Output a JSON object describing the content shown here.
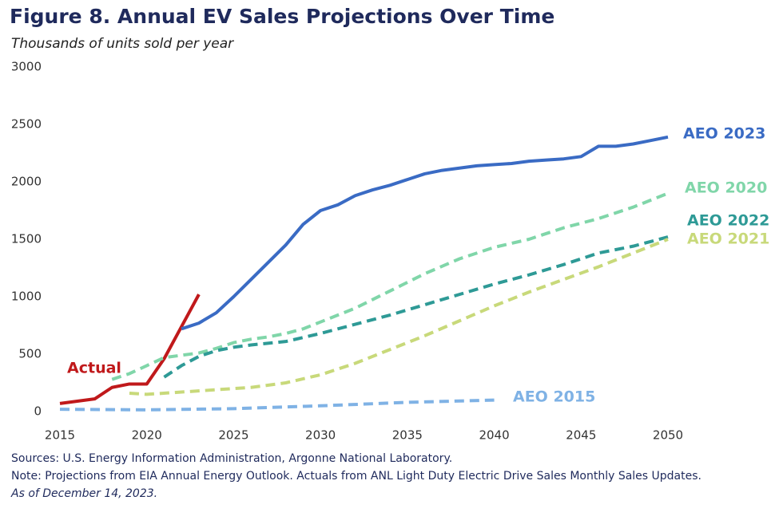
{
  "chart_data": {
    "type": "line",
    "title": "Figure 8. Annual EV Sales Projections Over Time",
    "subtitle": "Thousands of units sold per year",
    "xlim": [
      2015,
      2050
    ],
    "xticks": [
      2015,
      2020,
      2025,
      2030,
      2035,
      2040,
      2045,
      2050
    ],
    "ylim": [
      0,
      3000
    ],
    "yticks": [
      0,
      500,
      1000,
      1500,
      2000,
      2500,
      3000
    ],
    "series": [
      {
        "name": "Actual",
        "color": "#c0191b",
        "dashed": false,
        "x": [
          2015,
          2016,
          2017,
          2018,
          2019,
          2020,
          2021,
          2022,
          2023
        ],
        "values": [
          70,
          90,
          110,
          210,
          240,
          240,
          460,
          740,
          1020
        ]
      },
      {
        "name": "AEO 2023",
        "color": "#3a6bc4",
        "dashed": false,
        "x": [
          2022,
          2023,
          2024,
          2025,
          2026,
          2027,
          2028,
          2029,
          2030,
          2031,
          2032,
          2033,
          2034,
          2035,
          2036,
          2037,
          2038,
          2039,
          2040,
          2041,
          2042,
          2043,
          2044,
          2045,
          2046,
          2047,
          2048,
          2049,
          2050
        ],
        "values": [
          720,
          770,
          860,
          1000,
          1150,
          1300,
          1450,
          1630,
          1750,
          1800,
          1880,
          1930,
          1970,
          2020,
          2070,
          2100,
          2120,
          2140,
          2150,
          2160,
          2180,
          2190,
          2200,
          2220,
          2310,
          2310,
          2330,
          2360,
          2390
        ]
      },
      {
        "name": "AEO 2020",
        "color": "#80d6a9",
        "dashed": true,
        "x": [
          2018,
          2019,
          2020,
          2021,
          2022,
          2023,
          2024,
          2025,
          2026,
          2027,
          2028,
          2029,
          2030,
          2032,
          2034,
          2036,
          2038,
          2040,
          2042,
          2044,
          2046,
          2048,
          2050
        ],
        "values": [
          280,
          330,
          400,
          470,
          490,
          510,
          550,
          600,
          630,
          650,
          680,
          720,
          780,
          900,
          1050,
          1200,
          1330,
          1430,
          1500,
          1600,
          1680,
          1780,
          1900
        ]
      },
      {
        "name": "AEO 2022",
        "color": "#2e9a96",
        "dashed": true,
        "x": [
          2021,
          2022,
          2023,
          2024,
          2025,
          2026,
          2028,
          2030,
          2032,
          2034,
          2036,
          2038,
          2040,
          2042,
          2044,
          2046,
          2048,
          2050
        ],
        "values": [
          300,
          400,
          480,
          530,
          560,
          580,
          610,
          680,
          760,
          840,
          930,
          1020,
          1110,
          1190,
          1280,
          1380,
          1440,
          1520
        ]
      },
      {
        "name": "AEO 2021",
        "color": "#c8d97a",
        "dashed": true,
        "x": [
          2019,
          2020,
          2022,
          2024,
          2026,
          2028,
          2030,
          2032,
          2034,
          2036,
          2038,
          2040,
          2042,
          2044,
          2046,
          2048,
          2050
        ],
        "values": [
          160,
          150,
          170,
          190,
          210,
          250,
          320,
          420,
          540,
          660,
          790,
          920,
          1040,
          1150,
          1260,
          1380,
          1500
        ]
      },
      {
        "name": "AEO 2015",
        "color": "#7fb2e5",
        "dashed": true,
        "x": [
          2015,
          2020,
          2025,
          2030,
          2035,
          2040
        ],
        "values": [
          20,
          15,
          25,
          50,
          80,
          100
        ]
      }
    ],
    "sources": "Sources: U.S. Energy Information Administration, Argonne National Laboratory.",
    "note": "Note: Projections from EIA Annual Energy Outlook. Actuals from ANL Light Duty Electric Drive Sales Monthly Sales Updates.",
    "date": "As of December 14, 2023."
  }
}
